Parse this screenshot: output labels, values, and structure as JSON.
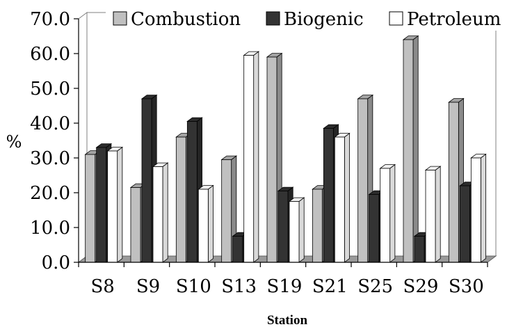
{
  "chart_data": {
    "type": "bar",
    "title": "",
    "xlabel": "Station",
    "ylabel": "%",
    "ylim": [
      0,
      70
    ],
    "yticks": [
      "0.0",
      "10.0",
      "20.0",
      "30.0",
      "40.0",
      "50.0",
      "60.0",
      "70.0"
    ],
    "categories": [
      "S8",
      "S9",
      "S10",
      "S13",
      "S19",
      "S21",
      "S25",
      "S29",
      "S30"
    ],
    "series": [
      {
        "name": "Combustion",
        "color": "#c0c0c0",
        "values": [
          31.0,
          21.5,
          36.0,
          29.5,
          59.0,
          21.0,
          47.0,
          64.0,
          46.0
        ]
      },
      {
        "name": "Biogenic",
        "color": "#333333",
        "values": [
          33.0,
          47.0,
          40.5,
          7.5,
          20.5,
          38.5,
          19.5,
          7.5,
          22.0
        ]
      },
      {
        "name": "Petroleum",
        "color": "#ffffff",
        "values": [
          32.0,
          27.5,
          21.0,
          59.5,
          17.5,
          36.0,
          27.0,
          26.5,
          30.0
        ]
      }
    ],
    "legend": "top-right",
    "grid": false
  }
}
